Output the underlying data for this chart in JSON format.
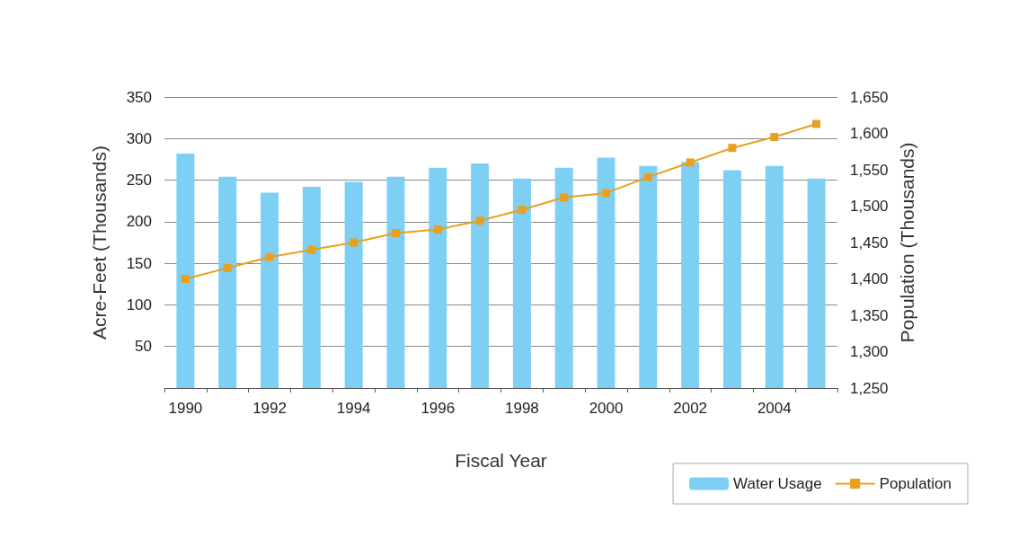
{
  "chart_data": {
    "type": "bar",
    "xlabel": "Fiscal Year",
    "ylabel": "Acre-Feet (Thousands)",
    "y2label": "Population (Thousands)",
    "categories": [
      "1990",
      null,
      "1992",
      null,
      "1994",
      null,
      "1996",
      null,
      "1998",
      null,
      "2000",
      null,
      "2002",
      null,
      "2004",
      null
    ],
    "series": [
      {
        "name": "Water Usage",
        "color": "#7dd0f3",
        "values": [
          282,
          254,
          235,
          242,
          248,
          254,
          265,
          270,
          252,
          265,
          277,
          267,
          272,
          262,
          267,
          252
        ]
      },
      {
        "name": "Population",
        "type": "line",
        "axis": "y2",
        "color": "#e8a020",
        "marker": "square",
        "values": [
          1400,
          1415,
          1430,
          1440,
          1450,
          1463,
          1468,
          1480,
          1495,
          1512,
          1518,
          1540,
          1560,
          1580,
          1595,
          1613
        ]
      }
    ],
    "ylim": [
      0,
      350
    ],
    "yticks": [
      50,
      100,
      150,
      200,
      250,
      300,
      350
    ],
    "y2lim": [
      1250,
      1650
    ],
    "y2ticks": [
      {
        "value": 1250,
        "label": "1,250"
      },
      {
        "value": 1300,
        "label": "1,300"
      },
      {
        "value": 1350,
        "label": "1,350"
      },
      {
        "value": 1400,
        "label": "1,400"
      },
      {
        "value": 1450,
        "label": "1,450"
      },
      {
        "value": 1500,
        "label": "1,500"
      },
      {
        "value": 1550,
        "label": "1,550"
      },
      {
        "value": 1600,
        "label": "1,600"
      },
      {
        "value": 1650,
        "label": "1,650"
      }
    ],
    "grid": "y",
    "legend": "bottom right"
  }
}
